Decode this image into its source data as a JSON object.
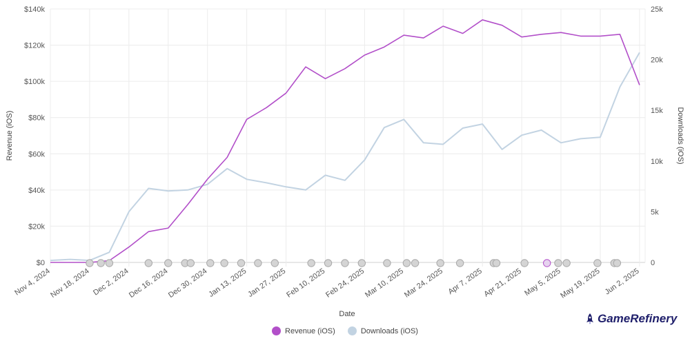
{
  "chart_data": {
    "type": "line",
    "xlabel": "Date",
    "ylabel_left": "Revenue (iOS)",
    "ylabel_right": "Downloads (iOS)",
    "x": [
      "2024-11-04",
      "2024-11-11",
      "2024-11-18",
      "2024-11-25",
      "2024-12-02",
      "2024-12-09",
      "2024-12-16",
      "2024-12-23",
      "2024-12-30",
      "2025-01-06",
      "2025-01-13",
      "2025-01-20",
      "2025-01-27",
      "2025-02-03",
      "2025-02-10",
      "2025-02-17",
      "2025-02-24",
      "2025-03-03",
      "2025-03-10",
      "2025-03-17",
      "2025-03-24",
      "2025-03-31",
      "2025-04-07",
      "2025-04-14",
      "2025-04-21",
      "2025-04-28",
      "2025-05-05",
      "2025-05-12",
      "2025-05-19",
      "2025-05-26",
      "2025-06-02"
    ],
    "x_tick_labels": [
      "Nov 4, 2024",
      "Nov 18, 2024",
      "Dec 2, 2024",
      "Dec 16, 2024",
      "Dec 30, 2024",
      "Jan 13, 2025",
      "Jan 27, 2025",
      "Feb 10, 2025",
      "Feb 24, 2025",
      "Mar 10, 2025",
      "Mar 24, 2025",
      "Apr 7, 2025",
      "Apr 21, 2025",
      "May 5, 2025",
      "May 19, 2025",
      "Jun 2, 2025"
    ],
    "y_left_ticks": [
      "$0",
      "$20k",
      "$40k",
      "$60k",
      "$80k",
      "$100k",
      "$120k",
      "$140k"
    ],
    "y_right_ticks": [
      "0",
      "5k",
      "10k",
      "15k",
      "20k",
      "25k"
    ],
    "ylim_left": [
      0,
      140000
    ],
    "ylim_right": [
      0,
      25000
    ],
    "grid": true,
    "legend_position": "bottom",
    "series": [
      {
        "name": "Revenue (iOS)",
        "axis": "left",
        "color": "#b24fc9",
        "values": [
          0,
          0,
          0,
          1000,
          8500,
          17000,
          19000,
          32000,
          46000,
          58000,
          79000,
          85500,
          93500,
          108000,
          101500,
          107000,
          114500,
          119000,
          125500,
          124000,
          130500,
          126500,
          134000,
          131000,
          124500,
          126000,
          127000,
          125000,
          125000,
          126000,
          98000
        ]
      },
      {
        "name": "Downloads (iOS)",
        "axis": "right",
        "color": "#c2d3e2",
        "values": [
          200,
          300,
          200,
          1000,
          5000,
          7300,
          7050,
          7150,
          7700,
          9250,
          8200,
          7850,
          7450,
          7150,
          8600,
          8100,
          10100,
          13300,
          14100,
          11800,
          11650,
          13250,
          13650,
          11150,
          12550,
          13050,
          11800,
          12200,
          12350,
          17300,
          20700
        ]
      }
    ],
    "event_markers": {
      "dates": [
        "2024-11-18",
        "2024-11-22",
        "2024-11-25",
        "2024-12-09",
        "2024-12-16",
        "2024-12-22",
        "2024-12-24",
        "2024-12-31",
        "2025-01-05",
        "2025-01-11",
        "2025-01-17",
        "2025-01-23",
        "2025-02-05",
        "2025-02-11",
        "2025-02-17",
        "2025-02-23",
        "2025-03-04",
        "2025-03-11",
        "2025-03-14",
        "2025-03-23",
        "2025-03-30",
        "2025-04-11",
        "2025-04-12",
        "2025-04-22",
        "2025-04-30",
        "2025-05-04",
        "2025-05-07",
        "2025-05-18",
        "2025-05-24",
        "2025-05-25"
      ],
      "highlighted": [
        "2025-04-30"
      ],
      "color": "#d4d4d4",
      "highlight_color": "#b24fc9"
    }
  },
  "legend": {
    "revenue_label": "Revenue (iOS)",
    "downloads_label": "Downloads (iOS)",
    "revenue_color": "#b24fc9",
    "downloads_color": "#c2d3e2"
  },
  "brand": {
    "name": "GameRefinery",
    "icon": "rocket-icon"
  }
}
